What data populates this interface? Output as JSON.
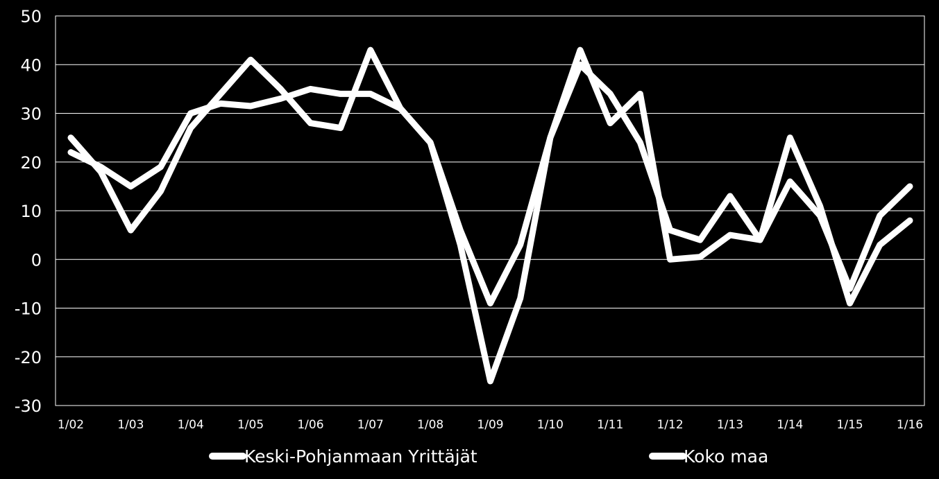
{
  "chart_data": {
    "type": "line",
    "title": "",
    "xlabel": "",
    "ylabel": "",
    "ylim": [
      -30,
      50
    ],
    "yticks": [
      -30,
      -20,
      -10,
      0,
      10,
      20,
      30,
      40,
      50
    ],
    "xtick_labels": [
      "1/02",
      "1/03",
      "1/04",
      "1/05",
      "1/06",
      "1/07",
      "1/08",
      "1/09",
      "1/10",
      "1/11",
      "1/12",
      "1/13",
      "1/14",
      "1/15",
      "1/16"
    ],
    "grid": "horizontal",
    "legend": "bottom",
    "line_color": "#ffffff",
    "background": "#000000",
    "x_count": 29,
    "series": [
      {
        "name": "Keski-Pohjanmaan Yrittäjät",
        "values": [
          25,
          18,
          6,
          14,
          27,
          34,
          41,
          35,
          28,
          27,
          43,
          31,
          24,
          3,
          -25,
          -8,
          25,
          43,
          28,
          34,
          0,
          0.5,
          5,
          4,
          25,
          11,
          -9,
          3,
          8
        ]
      },
      {
        "name": "Koko maa",
        "values": [
          22,
          19,
          15,
          19,
          30,
          32,
          31.5,
          33,
          35,
          34,
          34,
          31,
          24,
          6,
          -9,
          3,
          25,
          40,
          34,
          24,
          6,
          4,
          13,
          4,
          16,
          9,
          -6,
          9,
          15
        ]
      }
    ]
  }
}
